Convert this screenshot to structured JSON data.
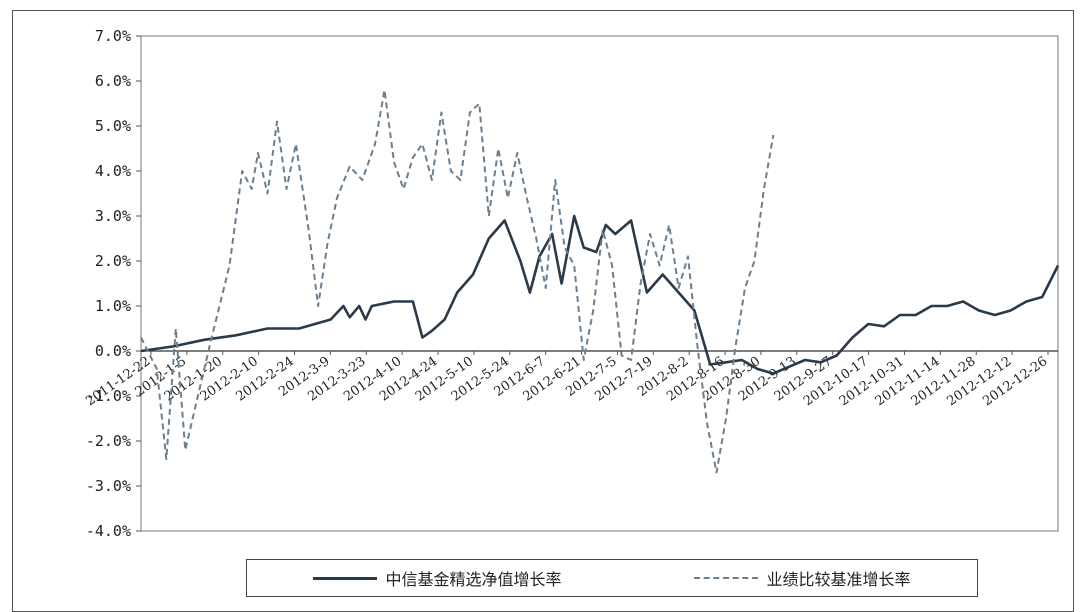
{
  "chart_data": {
    "type": "line",
    "title": "",
    "xlabel": "",
    "ylabel": "",
    "ylim": [
      -4.0,
      7.0
    ],
    "yticks": [
      "7.0%",
      "6.0%",
      "5.0%",
      "4.0%",
      "3.0%",
      "2.0%",
      "1.0%",
      "0.0%",
      "-1.0%",
      "-2.0%",
      "-3.0%",
      "-4.0%"
    ],
    "xticks": [
      "2011-12-22",
      "2012-1-5",
      "2012-1-20",
      "2012-2-10",
      "2012-2-24",
      "2012-3-9",
      "2012-3-23",
      "2012-4-10",
      "2012-4-24",
      "2012-5-10",
      "2012-5-24",
      "2012-6-7",
      "2012-6-21",
      "2012-7-5",
      "2012-7-19",
      "2012-8-2",
      "2012-8-16",
      "2012-8-30",
      "2012-9-13",
      "2012-9-27",
      "2012-10-17",
      "2012-10-31",
      "2012-11-14",
      "2012-11-28",
      "2012-12-12",
      "2012-12-26"
    ],
    "grid": false,
    "legend_position": "bottom",
    "series": [
      {
        "name": "中信基金精选净值增长率",
        "style": "solid",
        "color": "#2b3a4a",
        "points": [
          [
            0,
            0.0
          ],
          [
            1,
            0.1
          ],
          [
            2,
            0.25
          ],
          [
            3,
            0.35
          ],
          [
            4,
            0.5
          ],
          [
            5,
            0.5
          ],
          [
            6,
            0.7
          ],
          [
            6.4,
            1.0
          ],
          [
            6.6,
            0.75
          ],
          [
            6.9,
            1.0
          ],
          [
            7.1,
            0.7
          ],
          [
            7.3,
            1.0
          ],
          [
            8,
            1.1
          ],
          [
            8.6,
            1.1
          ],
          [
            8.9,
            0.3
          ],
          [
            9.2,
            0.45
          ],
          [
            9.6,
            0.7
          ],
          [
            10,
            1.3
          ],
          [
            10.5,
            1.7
          ],
          [
            11,
            2.5
          ],
          [
            11.5,
            2.9
          ],
          [
            12,
            2.0
          ],
          [
            12.3,
            1.3
          ],
          [
            12.6,
            2.1
          ],
          [
            13,
            2.6
          ],
          [
            13.3,
            1.5
          ],
          [
            13.7,
            3.0
          ],
          [
            14,
            2.3
          ],
          [
            14.4,
            2.2
          ],
          [
            14.7,
            2.8
          ],
          [
            15,
            2.6
          ],
          [
            15.5,
            2.9
          ],
          [
            16,
            1.3
          ],
          [
            16.5,
            1.7
          ],
          [
            17,
            1.3
          ],
          [
            17.5,
            0.9
          ],
          [
            18,
            -0.3
          ],
          [
            18.5,
            -0.25
          ],
          [
            19,
            -0.2
          ],
          [
            19.5,
            -0.4
          ],
          [
            20,
            -0.5
          ],
          [
            20.5,
            -0.35
          ],
          [
            21,
            -0.2
          ],
          [
            21.5,
            -0.25
          ],
          [
            22,
            -0.1
          ],
          [
            22.5,
            0.3
          ],
          [
            23,
            0.6
          ],
          [
            23.5,
            0.55
          ],
          [
            24,
            0.8
          ],
          [
            24.5,
            0.8
          ],
          [
            25,
            1.0
          ],
          [
            25.5,
            1.0
          ],
          [
            26,
            1.1
          ],
          [
            26.5,
            0.9
          ],
          [
            27,
            0.8
          ],
          [
            27.5,
            0.9
          ],
          [
            28,
            1.1
          ],
          [
            28.5,
            1.2
          ],
          [
            29,
            1.9
          ]
        ]
      },
      {
        "name": "业绩比较基准增长率",
        "style": "dashed",
        "color": "#6a7f8f",
        "points": [
          [
            0,
            0.3
          ],
          [
            0.5,
            -0.4
          ],
          [
            0.8,
            -2.4
          ],
          [
            1.1,
            0.5
          ],
          [
            1.4,
            -2.2
          ],
          [
            1.8,
            -1.0
          ],
          [
            2.2,
            0.2
          ],
          [
            2.8,
            1.9
          ],
          [
            3.2,
            4.0
          ],
          [
            3.5,
            3.6
          ],
          [
            3.7,
            4.4
          ],
          [
            4,
            3.5
          ],
          [
            4.3,
            5.1
          ],
          [
            4.6,
            3.6
          ],
          [
            4.9,
            4.6
          ],
          [
            5.3,
            2.7
          ],
          [
            5.6,
            1.0
          ],
          [
            5.9,
            2.4
          ],
          [
            6.2,
            3.4
          ],
          [
            6.6,
            4.1
          ],
          [
            7,
            3.8
          ],
          [
            7.4,
            4.6
          ],
          [
            7.7,
            5.8
          ],
          [
            8,
            4.2
          ],
          [
            8.3,
            3.6
          ],
          [
            8.6,
            4.3
          ],
          [
            8.9,
            4.6
          ],
          [
            9.2,
            3.8
          ],
          [
            9.5,
            5.3
          ],
          [
            9.8,
            4.0
          ],
          [
            10.1,
            3.8
          ],
          [
            10.4,
            5.3
          ],
          [
            10.7,
            5.5
          ],
          [
            11,
            3.0
          ],
          [
            11.3,
            4.5
          ],
          [
            11.6,
            3.4
          ],
          [
            11.9,
            4.4
          ],
          [
            12.2,
            3.4
          ],
          [
            12.5,
            2.5
          ],
          [
            12.8,
            1.4
          ],
          [
            13.1,
            3.8
          ],
          [
            13.4,
            2.3
          ],
          [
            13.7,
            1.9
          ],
          [
            14,
            -0.2
          ],
          [
            14.3,
            0.9
          ],
          [
            14.6,
            2.7
          ],
          [
            14.9,
            1.9
          ],
          [
            15.2,
            -0.1
          ],
          [
            15.5,
            -0.2
          ],
          [
            15.8,
            1.5
          ],
          [
            16.1,
            2.6
          ],
          [
            16.4,
            1.9
          ],
          [
            16.7,
            2.8
          ],
          [
            17,
            1.4
          ],
          [
            17.3,
            2.1
          ],
          [
            17.6,
            0.1
          ],
          [
            17.9,
            -1.6
          ],
          [
            18.2,
            -2.7
          ],
          [
            18.5,
            -1.5
          ],
          [
            18.8,
            0.1
          ],
          [
            19.1,
            1.4
          ],
          [
            19.4,
            2.0
          ],
          [
            19.7,
            3.6
          ],
          [
            20,
            4.8
          ]
        ]
      }
    ]
  },
  "legend": {
    "item1": "中信基金精选净值增长率",
    "item2": "业绩比较基准增长率"
  }
}
